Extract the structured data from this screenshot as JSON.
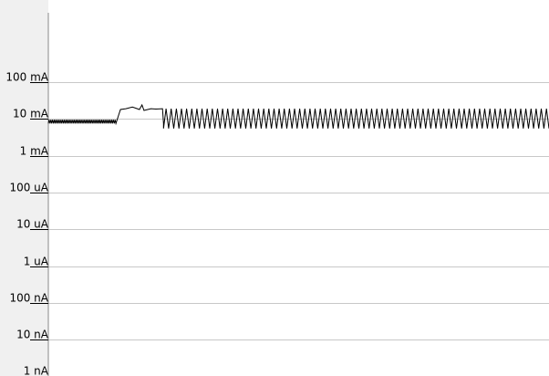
{
  "chart_data": {
    "type": "line",
    "title": "",
    "xlabel": "",
    "ylabel": "",
    "y_scale": "log",
    "y_unit": "A",
    "grid": true,
    "legend": "none",
    "y_ticks": [
      {
        "label": "100 mA",
        "value": 0.1
      },
      {
        "label": "10 mA",
        "value": 0.01
      },
      {
        "label": "1 mA",
        "value": 0.001
      },
      {
        "label": "100 uA",
        "value": 0.0001
      },
      {
        "label": "10 uA",
        "value": 1e-05
      },
      {
        "label": "1 uA",
        "value": 1e-06
      },
      {
        "label": "100 nA",
        "value": 1e-07
      },
      {
        "label": "10 nA",
        "value": 1e-08
      },
      {
        "label": "1 nA",
        "value": 1e-09
      }
    ],
    "ylim": [
      1e-09,
      0.3
    ],
    "xlim": [
      0,
      100
    ],
    "series": [
      {
        "color": "#000000",
        "segments": [
          {
            "kind": "oscillation",
            "x_start": 0.0,
            "x_end": 13.5,
            "low": 0.0075,
            "high": 0.0095,
            "cycles": 40
          },
          {
            "kind": "steps",
            "points": [
              [
                13.5,
                0.0075
              ],
              [
                14.4,
                0.018
              ],
              [
                15.5,
                0.019
              ],
              [
                16.8,
                0.021
              ],
              [
                17.5,
                0.0195
              ],
              [
                18.2,
                0.018
              ],
              [
                18.7,
                0.024
              ],
              [
                19.1,
                0.017
              ],
              [
                20.5,
                0.019
              ],
              [
                21.5,
                0.0185
              ],
              [
                22.8,
                0.019
              ],
              [
                23.0,
                0.0075
              ]
            ]
          },
          {
            "kind": "oscillation",
            "x_start": 23.0,
            "x_end": 100.0,
            "low": 0.0055,
            "high": 0.019,
            "cycles": 75
          }
        ]
      }
    ]
  }
}
